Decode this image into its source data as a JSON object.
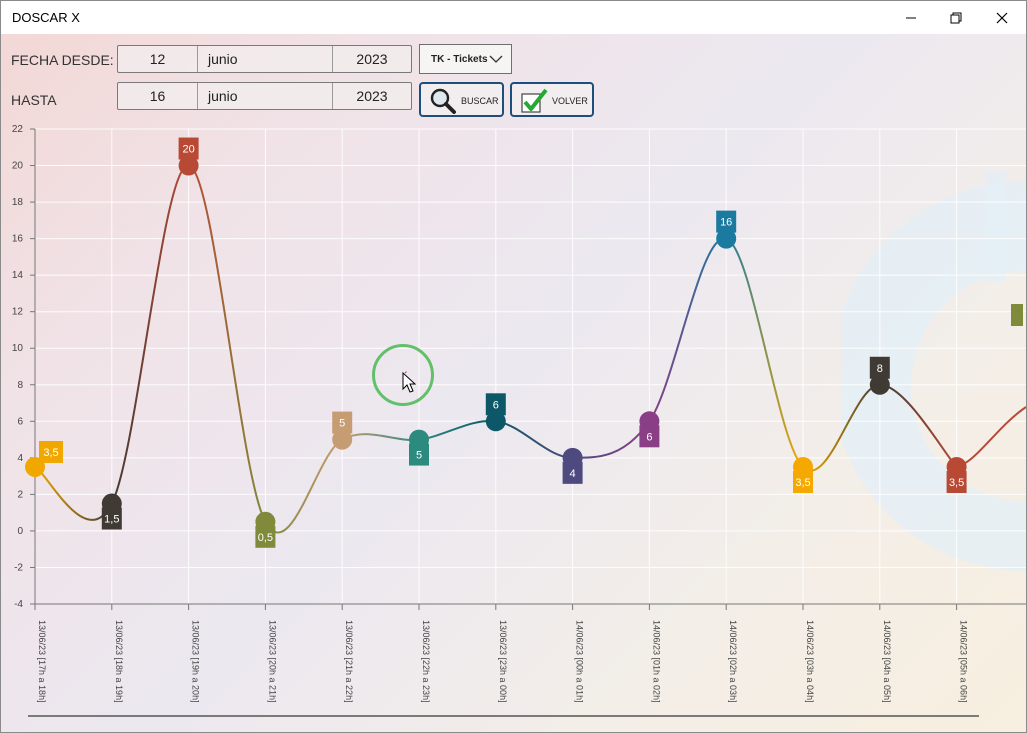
{
  "window": {
    "title": "DOSCAR X"
  },
  "form": {
    "from_label": "FECHA DESDE:",
    "to_label": "HASTA",
    "from": {
      "day": "12",
      "month": "junio",
      "year": "2023"
    },
    "to": {
      "day": "16",
      "month": "junio",
      "year": "2023"
    },
    "type_select": {
      "value": "TK - Tickets"
    },
    "search_button": "BUSCAR",
    "back_button": "VOLVER"
  },
  "chart_data": {
    "type": "line",
    "ylim": [
      -4,
      22
    ],
    "yticks": [
      "22",
      "20",
      "18",
      "16",
      "14",
      "12",
      "10",
      "8",
      "6",
      "4",
      "2",
      "0",
      "-2",
      "-4"
    ],
    "grid": true,
    "categories": [
      "13/06/23 [17h a 18h]",
      "13/06/23 [18h a 19h]",
      "13/06/23 [19h a 20h]",
      "13/06/23 [20h a 21h]",
      "13/06/23 [21h a 22h]",
      "13/06/23 [22h a 23h]",
      "13/06/23 [23h a 00h]",
      "14/06/23 [00h a 01h]",
      "14/06/23 [01h a 02h]",
      "14/06/23 [02h a 03h]",
      "14/06/23 [03h a 04h]",
      "14/06/23 [04h a 05h]",
      "14/06/23 [05h a 06h]"
    ],
    "values": [
      3.5,
      1.5,
      20,
      0.5,
      5,
      5,
      6,
      4,
      6,
      16,
      3.5,
      8,
      3.5
    ],
    "value_labels": [
      "3,5",
      "1,5",
      "20",
      "0,5",
      "5",
      "5",
      "6",
      "4",
      "6",
      "16",
      "3,5",
      "8",
      "3,5"
    ],
    "colors": [
      "#f0a800",
      "#3f3a33",
      "#b84a35",
      "#7f8a3a",
      "#c69c72",
      "#2d8a7e",
      "#0d5868",
      "#4e4a80",
      "#8a3e86",
      "#1b7aa0",
      "#f5a900",
      "#3f3a33",
      "#b84a35"
    ]
  }
}
